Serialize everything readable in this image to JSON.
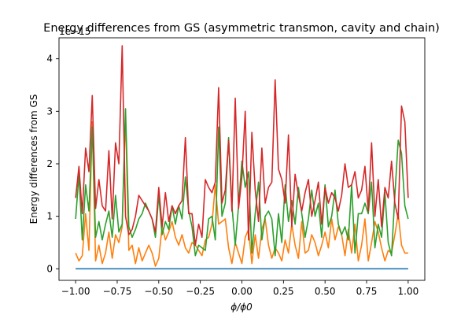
{
  "chart_data": {
    "type": "line",
    "title": "Energy differences from GS (asymmetric transmon, cavity and chain)",
    "xlabel": "ϕ/ϕ0",
    "ylabel": "Energy differences from GS",
    "y_offset_text": "1e−15",
    "xlim": [
      -1.1,
      1.1
    ],
    "ylim": [
      -0.22,
      4.4
    ],
    "grid": false,
    "x_ticks": [
      -1.0,
      -0.75,
      -0.5,
      -0.25,
      0.0,
      0.25,
      0.5,
      0.75,
      1.0
    ],
    "x_tick_labels": [
      "−1.00",
      "−0.75",
      "−0.50",
      "−0.25",
      "0.00",
      "0.25",
      "0.50",
      "0.75",
      "1.00"
    ],
    "y_ticks": [
      0,
      1,
      2,
      3,
      4
    ],
    "y_tick_labels": [
      "0",
      "1",
      "2",
      "3",
      "4"
    ],
    "x": [
      -1.0,
      -0.98,
      -0.96,
      -0.94,
      -0.92,
      -0.9,
      -0.88,
      -0.86,
      -0.84,
      -0.82,
      -0.8,
      -0.78,
      -0.76,
      -0.74,
      -0.72,
      -0.7,
      -0.68,
      -0.66,
      -0.64,
      -0.62,
      -0.6,
      -0.58,
      -0.56,
      -0.54,
      -0.52,
      -0.5,
      -0.48,
      -0.46,
      -0.44,
      -0.42,
      -0.4,
      -0.38,
      -0.36,
      -0.34,
      -0.32,
      -0.3,
      -0.28,
      -0.26,
      -0.24,
      -0.22,
      -0.2,
      -0.18,
      -0.16,
      -0.14,
      -0.12,
      -0.1,
      -0.08,
      -0.06,
      -0.04,
      -0.02,
      0.0,
      0.02,
      0.04,
      0.06,
      0.08,
      0.1,
      0.12,
      0.14,
      0.16,
      0.18,
      0.2,
      0.22,
      0.24,
      0.26,
      0.28,
      0.3,
      0.32,
      0.34,
      0.36,
      0.38,
      0.4,
      0.42,
      0.44,
      0.46,
      0.48,
      0.5,
      0.52,
      0.54,
      0.56,
      0.58,
      0.6,
      0.62,
      0.64,
      0.66,
      0.68,
      0.7,
      0.72,
      0.74,
      0.76,
      0.78,
      0.8,
      0.82,
      0.84,
      0.86,
      0.88,
      0.9,
      0.92,
      0.94,
      0.96,
      0.98,
      1.0
    ],
    "series": [
      {
        "color": "#1f77b4",
        "values": [
          0,
          0,
          0,
          0,
          0,
          0,
          0,
          0,
          0,
          0,
          0,
          0,
          0,
          0,
          0,
          0,
          0,
          0,
          0,
          0,
          0,
          0,
          0,
          0,
          0,
          0,
          0,
          0,
          0,
          0,
          0,
          0,
          0,
          0,
          0,
          0,
          0,
          0,
          0,
          0,
          0,
          0,
          0,
          0,
          0,
          0,
          0,
          0,
          0,
          0,
          0,
          0,
          0,
          0,
          0,
          0,
          0,
          0,
          0,
          0,
          0,
          0,
          0,
          0,
          0,
          0,
          0,
          0,
          0,
          0,
          0,
          0,
          0,
          0,
          0,
          0,
          0,
          0,
          0,
          0,
          0,
          0,
          0,
          0,
          0,
          0,
          0,
          0,
          0,
          0,
          0,
          0,
          0,
          0,
          0,
          0,
          0,
          0,
          0,
          0,
          0
        ]
      },
      {
        "color": "#ff7f0e",
        "values": [
          0.3,
          0.15,
          0.25,
          1.05,
          0.35,
          2.8,
          0.15,
          0.45,
          0.1,
          0.3,
          0.7,
          0.2,
          0.65,
          0.5,
          0.8,
          2.9,
          0.35,
          0.45,
          0.1,
          0.4,
          0.15,
          0.3,
          0.45,
          0.3,
          0.05,
          0.2,
          0.8,
          0.55,
          0.7,
          0.9,
          0.6,
          0.45,
          0.65,
          0.4,
          0.3,
          0.5,
          0.45,
          0.35,
          0.25,
          0.55,
          0.6,
          0.85,
          1.6,
          0.85,
          0.9,
          0.95,
          0.4,
          0.1,
          0.5,
          0.3,
          0.1,
          0.6,
          0.75,
          0.1,
          0.65,
          0.2,
          0.75,
          0.95,
          0.45,
          0.2,
          0.4,
          0.3,
          0.15,
          0.55,
          0.3,
          0.85,
          0.45,
          0.2,
          0.9,
          0.3,
          0.35,
          0.65,
          0.5,
          0.25,
          0.45,
          0.7,
          0.4,
          0.95,
          0.55,
          0.8,
          0.65,
          0.25,
          0.75,
          0.3,
          0.85,
          0.15,
          0.45,
          0.95,
          0.15,
          0.5,
          0.9,
          0.7,
          0.4,
          0.15,
          0.35,
          0.3,
          0.65,
          1.05,
          0.45,
          0.3,
          0.3
        ]
      },
      {
        "color": "#2ca02c",
        "values": [
          0.95,
          1.8,
          0.55,
          1.6,
          1.1,
          2.7,
          0.6,
          0.9,
          0.55,
          0.85,
          1.1,
          0.6,
          1.4,
          0.7,
          0.85,
          3.05,
          0.8,
          0.6,
          0.75,
          0.95,
          1.05,
          1.25,
          1.1,
          0.95,
          0.6,
          1.4,
          0.65,
          0.9,
          0.75,
          1.2,
          0.85,
          1.2,
          0.95,
          1.75,
          1.1,
          0.8,
          0.25,
          0.45,
          0.4,
          0.35,
          0.95,
          1.0,
          0.55,
          2.7,
          1.0,
          1.25,
          2.5,
          1.2,
          0.45,
          1.2,
          2.05,
          1.55,
          1.85,
          0.3,
          1.05,
          1.65,
          0.55,
          1.0,
          1.1,
          0.95,
          0.25,
          1.05,
          0.5,
          1.6,
          0.9,
          1.3,
          0.85,
          1.55,
          1.05,
          0.6,
          0.95,
          1.5,
          1.0,
          1.25,
          0.6,
          1.6,
          0.8,
          1.0,
          1.5,
          0.85,
          0.65,
          0.8,
          0.55,
          1.6,
          0.3,
          1.05,
          1.05,
          1.25,
          1.05,
          1.65,
          0.4,
          0.85,
          0.6,
          1.45,
          0.5,
          0.25,
          1.4,
          2.45,
          2.2,
          1.2,
          0.95
        ]
      },
      {
        "color": "#d62728",
        "values": [
          1.35,
          1.95,
          1.05,
          2.3,
          1.85,
          3.3,
          1.15,
          1.7,
          1.2,
          1.1,
          2.25,
          0.95,
          2.4,
          2.0,
          4.25,
          1.0,
          0.65,
          0.75,
          1.0,
          1.4,
          1.3,
          1.2,
          1.1,
          0.95,
          0.7,
          1.55,
          0.8,
          1.45,
          0.9,
          1.2,
          1.05,
          1.2,
          1.3,
          2.5,
          1.05,
          1.05,
          0.45,
          0.85,
          0.6,
          1.7,
          1.55,
          1.45,
          1.65,
          3.45,
          1.25,
          1.5,
          2.45,
          1.1,
          3.25,
          1.15,
          1.75,
          3.0,
          0.55,
          2.6,
          1.5,
          0.9,
          2.3,
          1.25,
          1.55,
          1.65,
          3.6,
          1.9,
          1.7,
          1.25,
          2.55,
          0.8,
          1.8,
          1.4,
          1.1,
          1.45,
          1.7,
          1.0,
          1.3,
          1.65,
          0.85,
          1.55,
          1.25,
          1.45,
          1.35,
          1.1,
          1.4,
          2.0,
          1.55,
          1.6,
          1.85,
          1.35,
          1.5,
          1.95,
          1.1,
          2.4,
          1.0,
          1.7,
          0.8,
          1.55,
          1.35,
          2.05,
          1.25,
          0.95,
          3.1,
          2.8,
          1.35
        ]
      }
    ]
  }
}
